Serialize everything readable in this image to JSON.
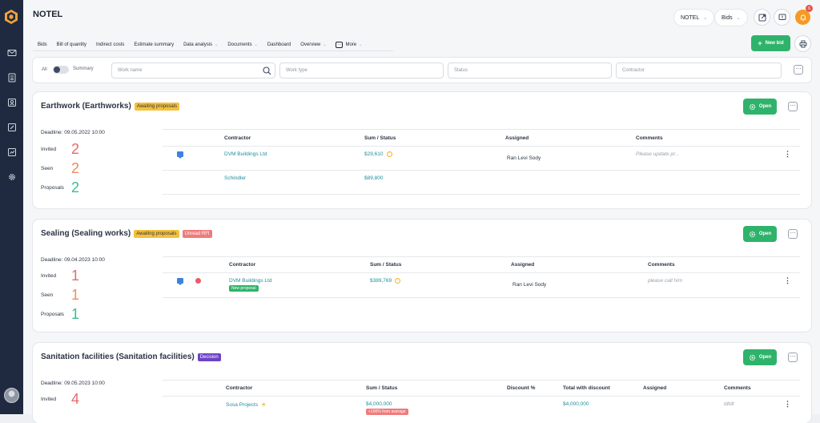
{
  "app": {
    "title": "NOTEL"
  },
  "header": {
    "project_select": "NOTEL",
    "module_select": "Bids",
    "notification_count": "6"
  },
  "tabs": [
    {
      "label": "Bids",
      "active": true
    },
    {
      "label": "Bill of quantity"
    },
    {
      "label": "Indirect costs"
    },
    {
      "label": "Estimate summary"
    },
    {
      "label": "Data analysis",
      "dropdown": true
    },
    {
      "label": "Documents",
      "dropdown": true
    },
    {
      "label": "Dashboard"
    },
    {
      "label": "Overview",
      "dropdown": true
    },
    {
      "label": "More",
      "dropdown": true
    }
  ],
  "actions": {
    "new_bid": "New bid"
  },
  "filters": {
    "all_label": "All",
    "summary_label": "Summary",
    "work_name_placeholder": "Work name",
    "work_type_placeholder": "Work type",
    "status_placeholder": "Status",
    "contractor_placeholder": "Contractor"
  },
  "cards": [
    {
      "title": "Earthwork (Earthworks)",
      "badges": [
        "Awaiting proposals"
      ],
      "open_label": "Open",
      "deadline": "Deadline: 09.05.2022 10:00",
      "stats": [
        {
          "label": "Invited",
          "value": "2"
        },
        {
          "label": "Seen",
          "value": "2"
        },
        {
          "label": "Proposals",
          "value": "2"
        }
      ],
      "columns": [
        "Contractor",
        "Sum / Status",
        "Assigned",
        "Comments"
      ],
      "rows": [
        {
          "contractor": "DVM Buildings Ltd",
          "sum": "$29,610",
          "assigned": "Ran Levi Sody",
          "comment": "Please update pr..."
        },
        {
          "contractor": "Schindler",
          "sum": "$89,800",
          "assigned": "",
          "comment": ""
        }
      ]
    },
    {
      "title": "Sealing (Sealing works)",
      "badges": [
        "Awaiting proposals",
        "Unread RFI"
      ],
      "open_label": "Open",
      "deadline": "Deadline: 09.04.2023 10:00",
      "stats": [
        {
          "label": "Invited",
          "value": "1"
        },
        {
          "label": "Seen",
          "value": "1"
        },
        {
          "label": "Proposals",
          "value": "1"
        }
      ],
      "columns": [
        "Contractor",
        "Sum / Status",
        "Assigned",
        "Comments"
      ],
      "rows": [
        {
          "contractor": "DVM Buildings Ltd",
          "tag": "New proposal",
          "sum": "$389,769",
          "assigned": "Ran Levi Sody",
          "comment": "please call him"
        }
      ]
    },
    {
      "title": "Sanitation facilities (Sanitation facilities)",
      "badges": [
        "Decision"
      ],
      "open_label": "Open",
      "deadline": "Deadline: 09.05.2023 10:00",
      "stats": [
        {
          "label": "Invited",
          "value": "4"
        }
      ],
      "columns": [
        "Contractor",
        "Sum / Status",
        "Discount %",
        "Total with discount",
        "Assigned",
        "Comments"
      ],
      "rows": [
        {
          "contractor": "Sosa Projects",
          "sum": "$4,000,000",
          "sum_tag": "+100%  from average",
          "total": "$4,000,000",
          "comment": "tdtdt"
        }
      ]
    }
  ],
  "colors": {
    "accent_green": "#2fb36b",
    "sidebar": "#1f2a40",
    "bell": "#f59a24"
  }
}
